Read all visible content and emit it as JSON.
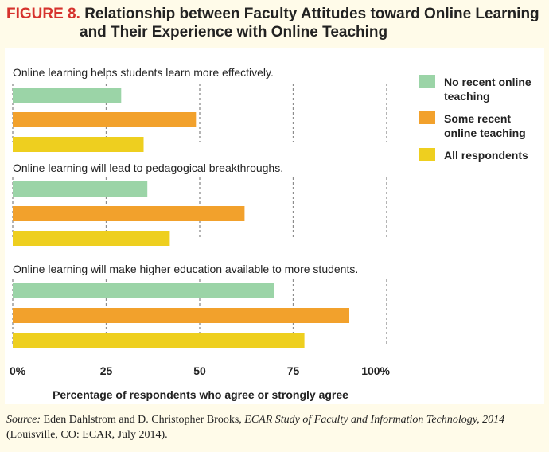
{
  "figure": {
    "label": "FIGURE 8",
    "sep": ".",
    "title_line1": "Relationship between Faculty Attitudes toward Online Learning",
    "title_line2": "and Their Experience with Online Teaching"
  },
  "source": {
    "label": "Source:",
    "authors": " Eden Dahlstrom and D. Christopher Brooks, ",
    "title": "ECAR Study of Faculty and Information Technology, 2014",
    "publication": " (Louisville, CO: ECAR, July 2014)."
  },
  "chart_data": {
    "type": "bar",
    "orientation": "horizontal",
    "xlabel": "Percentage of respondents who agree or strongly agree",
    "xlim": [
      0,
      100
    ],
    "x_ticks": [
      "0%",
      "25",
      "50",
      "75",
      "100%"
    ],
    "grid": "vertical dashed",
    "legend_position": "top-right",
    "categories": [
      "Online learning helps students learn more effectively.",
      "Online learning will lead to pedagogical breakthroughs.",
      "Online learning will make higher education available to more students."
    ],
    "series": [
      {
        "name": "No recent online teaching",
        "legend_lines": [
          "No recent online",
          "teaching"
        ],
        "color": "#9bd4a7",
        "values": [
          29,
          36,
          70
        ]
      },
      {
        "name": "Some recent online teaching",
        "legend_lines": [
          "Some recent",
          "online teaching"
        ],
        "color": "#f2a12c",
        "values": [
          49,
          62,
          90
        ]
      },
      {
        "name": "All respondents",
        "legend_lines": [
          "All respondents"
        ],
        "color": "#eecf1f",
        "values": [
          35,
          42,
          78
        ]
      }
    ]
  }
}
